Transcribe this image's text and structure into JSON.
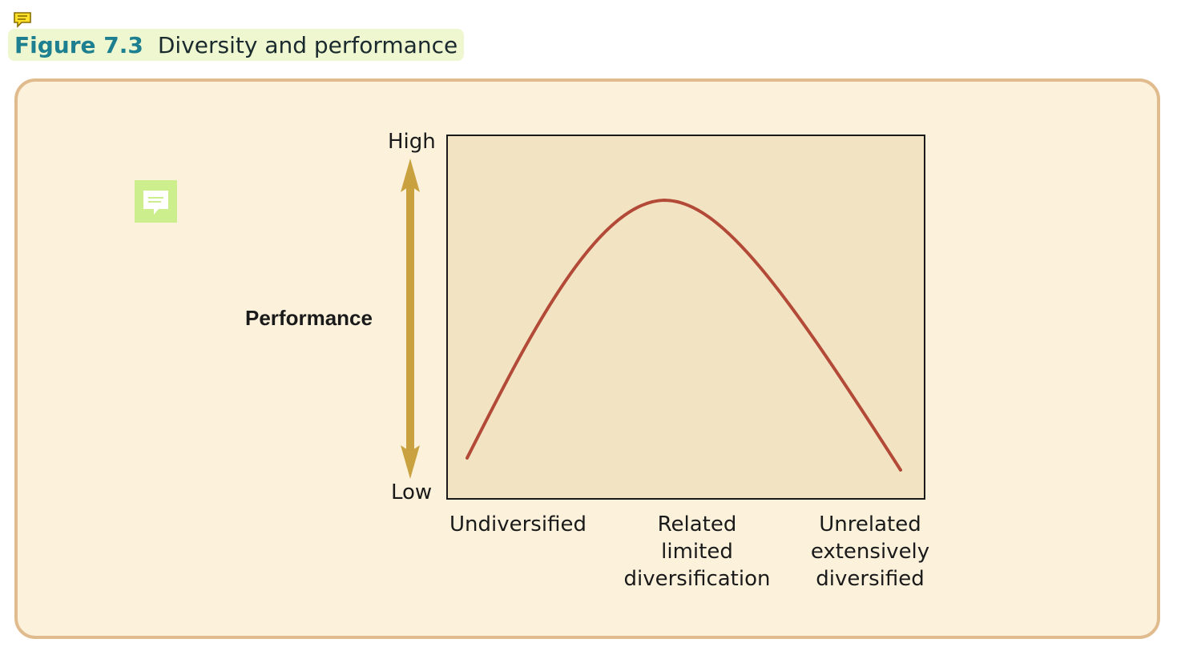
{
  "caption": {
    "figure_number": "Figure 7.3",
    "title": "Diversity and performance"
  },
  "diagram": {
    "y_axis": {
      "label": "Performance",
      "high": "High",
      "low": "Low"
    },
    "x_categories": [
      {
        "lines": [
          "Undiversified"
        ]
      },
      {
        "lines": [
          "Related",
          "limited",
          "diversification"
        ]
      },
      {
        "lines": [
          "Unrelated",
          "extensively",
          "diversified"
        ]
      }
    ],
    "curve_shape": "inverted-U",
    "colors": {
      "curve": "#b34a37",
      "arrow": "#c9a13f",
      "plot_background": "#f2e4c3",
      "panel_background": "#fcf2dc",
      "panel_border": "#e0bb8d",
      "caption_number": "#1d7f8f",
      "caption_background": "#eef7cf",
      "note_icon": "#ccee8c"
    }
  },
  "icons": {
    "top": "comment-icon",
    "side": "comment-icon"
  }
}
